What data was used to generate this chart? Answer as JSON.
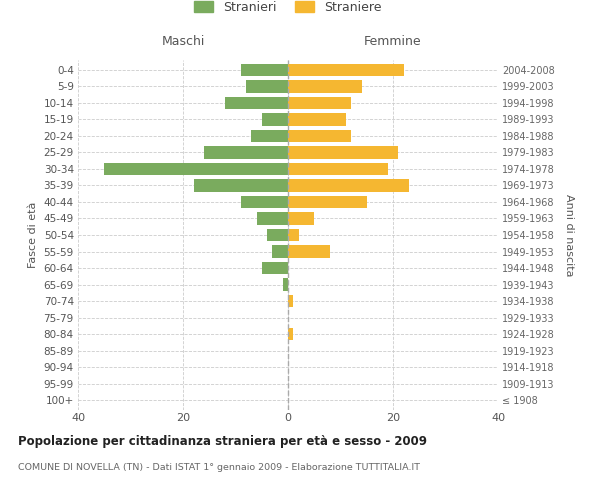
{
  "age_groups": [
    "100+",
    "95-99",
    "90-94",
    "85-89",
    "80-84",
    "75-79",
    "70-74",
    "65-69",
    "60-64",
    "55-59",
    "50-54",
    "45-49",
    "40-44",
    "35-39",
    "30-34",
    "25-29",
    "20-24",
    "15-19",
    "10-14",
    "5-9",
    "0-4"
  ],
  "birth_years": [
    "≤ 1908",
    "1909-1913",
    "1914-1918",
    "1919-1923",
    "1924-1928",
    "1929-1933",
    "1934-1938",
    "1939-1943",
    "1944-1948",
    "1949-1953",
    "1954-1958",
    "1959-1963",
    "1964-1968",
    "1969-1973",
    "1974-1978",
    "1979-1983",
    "1984-1988",
    "1989-1993",
    "1994-1998",
    "1999-2003",
    "2004-2008"
  ],
  "males": [
    0,
    0,
    0,
    0,
    0,
    0,
    0,
    1,
    5,
    3,
    4,
    6,
    9,
    18,
    35,
    16,
    7,
    5,
    12,
    8,
    9
  ],
  "females": [
    0,
    0,
    0,
    0,
    1,
    0,
    1,
    0,
    0,
    8,
    2,
    5,
    15,
    23,
    19,
    21,
    12,
    11,
    12,
    14,
    22
  ],
  "male_color": "#7aab5e",
  "female_color": "#f5b731",
  "background_color": "#ffffff",
  "grid_color": "#cccccc",
  "title": "Popolazione per cittadinanza straniera per età e sesso - 2009",
  "subtitle": "COMUNE DI NOVELLA (TN) - Dati ISTAT 1° gennaio 2009 - Elaborazione TUTTITALIA.IT",
  "ylabel_left": "Fasce di età",
  "ylabel_right": "Anni di nascita",
  "header_left": "Maschi",
  "header_right": "Femmine",
  "legend_stranieri": "Stranieri",
  "legend_straniere": "Straniere",
  "xlim": 40,
  "bar_height": 0.75
}
